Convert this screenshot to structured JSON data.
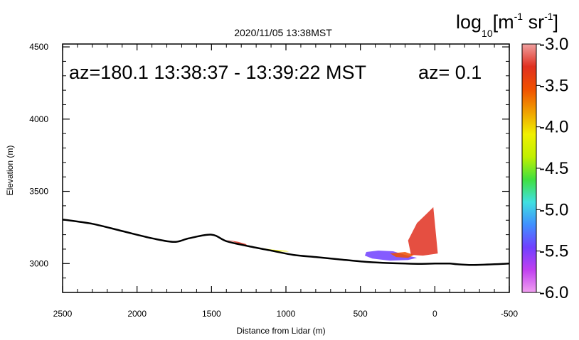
{
  "chart_data": {
    "type": "heatmap",
    "title": "2020/11/05 13:38MST",
    "xlabel": "Distance from Lidar (m)",
    "ylabel": "Elevation (m)",
    "xlim": [
      2500,
      -500
    ],
    "ylim": [
      2800,
      4520
    ],
    "x_ticks": [
      2500,
      2000,
      1500,
      1000,
      500,
      0,
      -500
    ],
    "x_tick_labels": [
      "2500",
      "2000",
      "1500",
      "1000",
      "500",
      "0",
      "-500"
    ],
    "y_ticks": [
      3000,
      3500,
      4000,
      4500
    ],
    "y_tick_labels": [
      "3000",
      "3500",
      "4000",
      "4500"
    ],
    "annotations": [
      "az=180.1 13:38:37 - 13:39:22 MST",
      "az= 0.1"
    ],
    "terrain_profile": {
      "x": [
        2500,
        2300,
        2100,
        1900,
        1750,
        1650,
        1500,
        1400,
        1250,
        1100,
        950,
        800,
        650,
        500,
        350,
        200,
        100,
        0,
        -100,
        -150,
        -250,
        -400,
        -500
      ],
      "y": [
        3305,
        3275,
        3225,
        3175,
        3150,
        3175,
        3200,
        3155,
        3120,
        3090,
        3060,
        3045,
        3030,
        3015,
        3005,
        3000,
        2998,
        3000,
        3000,
        2995,
        2990,
        2995,
        3000
      ]
    },
    "colorbar": {
      "title": "log",
      "title_subscript": "10",
      "units": "[m",
      "units_exp1": "-1",
      "units_mid": " sr",
      "units_exp2": "-1",
      "units_close": "]",
      "vmin": -6.0,
      "vmax": -3.0,
      "tick_values": [
        -3.0,
        -3.5,
        -4.0,
        -4.5,
        -5.0,
        -5.5,
        -6.0
      ],
      "tick_labels": [
        "-3.0",
        "-3.5",
        "-4.0",
        "-4.5",
        "-5.0",
        "-5.5",
        "-6.0"
      ],
      "colors": [
        "#f0a0f0",
        "#c040f0",
        "#7040ff",
        "#4090ff",
        "#40e0e0",
        "#40e040",
        "#c0f000",
        "#f0f000",
        "#f0a000",
        "#f05000",
        "#e03020",
        "#f0a0a0"
      ]
    },
    "backscatter_regions": [
      {
        "name": "hillside-low",
        "level": -3.4,
        "polygon": [
          [
            1400,
            3165
          ],
          [
            1350,
            3150
          ],
          [
            1300,
            3130
          ],
          [
            1250,
            3118
          ],
          [
            1270,
            3135
          ],
          [
            1320,
            3150
          ]
        ]
      },
      {
        "name": "valley-floor",
        "level": -4.2,
        "polygon": [
          [
            1150,
            3105
          ],
          [
            1100,
            3098
          ],
          [
            1000,
            3088
          ],
          [
            980,
            3082
          ],
          [
            1050,
            3085
          ],
          [
            1120,
            3092
          ]
        ]
      },
      {
        "name": "plume-upper",
        "level": -3.3,
        "polygon": [
          [
            120,
            3280
          ],
          [
            60,
            3340
          ],
          [
            10,
            3390
          ],
          [
            -20,
            3070
          ],
          [
            80,
            3055
          ],
          [
            160,
            3060
          ],
          [
            180,
            3160
          ]
        ]
      },
      {
        "name": "plume-base",
        "level": -5.4,
        "polygon": [
          [
            460,
            3080
          ],
          [
            380,
            3090
          ],
          [
            280,
            3085
          ],
          [
            200,
            3060
          ],
          [
            120,
            3040
          ],
          [
            180,
            3025
          ],
          [
            300,
            3020
          ],
          [
            420,
            3035
          ],
          [
            470,
            3055
          ]
        ]
      },
      {
        "name": "plume-core",
        "level": -3.6,
        "polygon": [
          [
            300,
            3070
          ],
          [
            200,
            3080
          ],
          [
            140,
            3060
          ],
          [
            180,
            3040
          ],
          [
            260,
            3045
          ]
        ]
      }
    ]
  }
}
